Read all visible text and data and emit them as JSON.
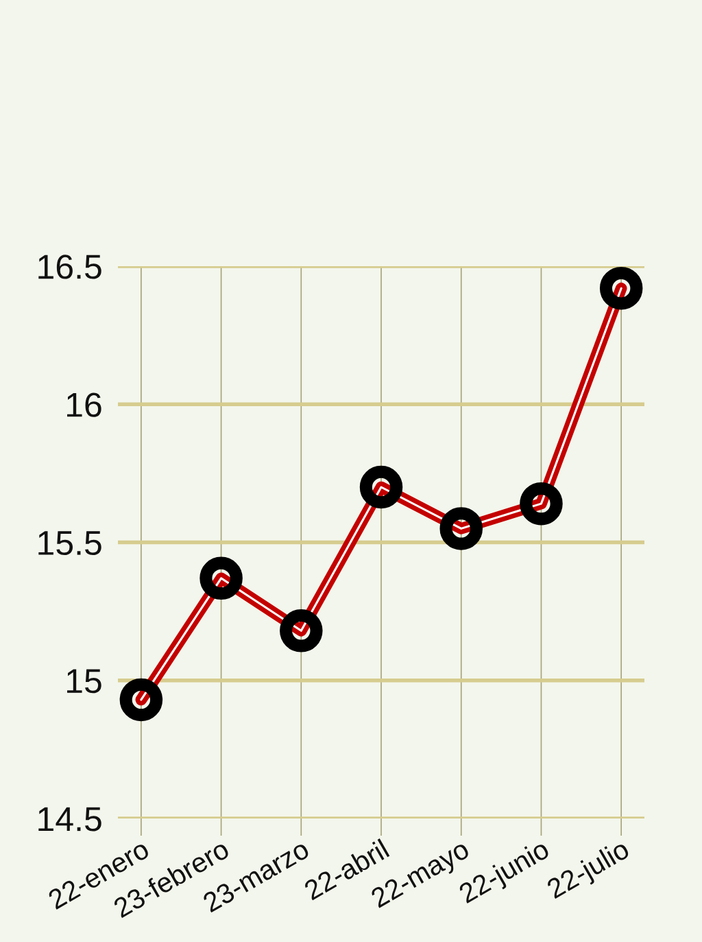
{
  "chart_data": {
    "type": "line",
    "categories": [
      "22-enero",
      "23-febrero",
      "23-marzo",
      "22-abril",
      "22-mayo",
      "22-junio",
      "22-julio"
    ],
    "series": [
      {
        "color": "#c40000",
        "marker": "none",
        "values": [
          14.93,
          15.37,
          15.18,
          15.7,
          15.55,
          15.64,
          16.42
        ]
      },
      {
        "type": "scatter",
        "color": "#000000",
        "marker": "circle",
        "values": [
          14.93,
          15.37,
          15.18,
          15.7,
          15.55,
          15.64,
          16.42
        ]
      }
    ],
    "ylim": [
      14.5,
      16.5
    ],
    "yticks": [
      14.5,
      15,
      15.5,
      16,
      16.5
    ],
    "grid": true,
    "line_style": "solid"
  }
}
